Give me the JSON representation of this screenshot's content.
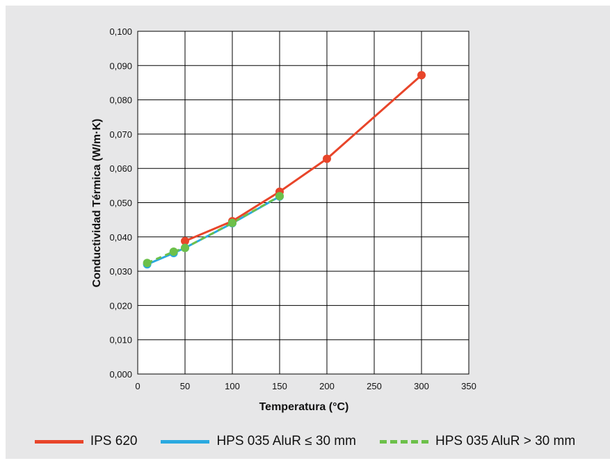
{
  "chart_data": {
    "type": "line",
    "xlabel": "Temperatura (°C)",
    "ylabel": "Conductividad Térmica (W/m·K)",
    "xlim": [
      0,
      350
    ],
    "ylim": [
      0,
      0.1
    ],
    "xticks": [
      0,
      50,
      100,
      150,
      200,
      250,
      300,
      350
    ],
    "xtick_labels": [
      "0",
      "50",
      "100",
      "150",
      "200",
      "250",
      "300",
      "350"
    ],
    "yticks": [
      0,
      0.01,
      0.02,
      0.03,
      0.04,
      0.05,
      0.06,
      0.07,
      0.08,
      0.09,
      0.1
    ],
    "ytick_labels": [
      "0,000",
      "0,010",
      "0,020",
      "0,030",
      "0,040",
      "0,050",
      "0,060",
      "0,070",
      "0,080",
      "0,090",
      "0,100"
    ],
    "grid": true,
    "legend_position": "bottom",
    "series": [
      {
        "name": "IPS 620",
        "color": "#e8452a",
        "dash": "solid",
        "x": [
          50,
          100,
          150,
          200,
          300
        ],
        "y": [
          0.0388,
          0.0446,
          0.0532,
          0.0628,
          0.0872
        ]
      },
      {
        "name": "HPS 035 AluR ≤ 30 mm",
        "color": "#2aa9e0",
        "dash": "solid",
        "x": [
          10,
          38,
          50,
          100,
          150
        ],
        "y": [
          0.032,
          0.0353,
          0.0368,
          0.044,
          0.0518
        ]
      },
      {
        "name": "HPS 035 AluR > 30 mm",
        "color": "#6cc04a",
        "dash": "dashed",
        "x": [
          10,
          38,
          50,
          100,
          150
        ],
        "y": [
          0.0324,
          0.0357,
          0.0368,
          0.0441,
          0.0519
        ]
      }
    ]
  }
}
